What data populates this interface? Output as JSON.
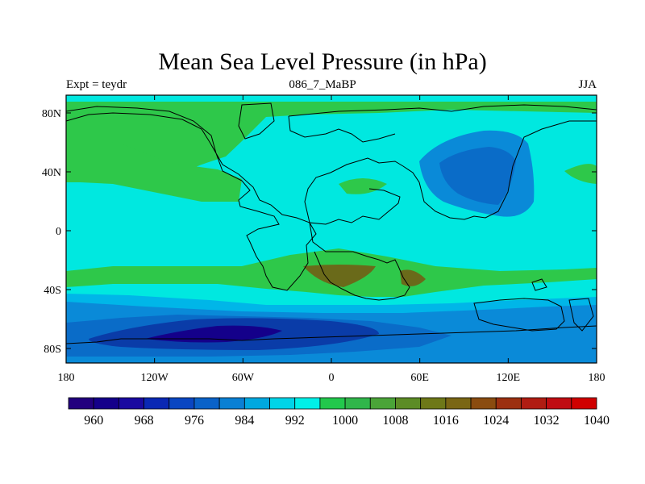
{
  "title": "Mean Sea Level Pressure (in hPa)",
  "subtitle_left": "Expt = teydr",
  "subtitle_center": "086_7_MaBP",
  "subtitle_right": "JJA",
  "colors": {
    "band_996_1004": "#00e8e0",
    "band_1004_1012": "#2ec84a",
    "band_992_996": "#00b6e8",
    "band_984_992": "#0a8ad8",
    "band_976_984": "#0a6cc8",
    "band_968_976": "#0a3ca8",
    "band_1012_1020": "#6a6a1a"
  },
  "map": {
    "lat_ticks": [
      "80N",
      "40N",
      "0",
      "40S",
      "80S"
    ],
    "lon_ticks": [
      "180",
      "120W",
      "60W",
      "0",
      "60E",
      "120E",
      "180"
    ]
  },
  "colorbar": {
    "colors": [
      "#22007e",
      "#14008a",
      "#1a0aa0",
      "#0a28b4",
      "#0a46c2",
      "#0a62c8",
      "#0a80d4",
      "#00a8e0",
      "#00d4e8",
      "#00f0e8",
      "#22c84c",
      "#30b64a",
      "#4aa438",
      "#5c8c26",
      "#6e7818",
      "#7a6614",
      "#8a4c10",
      "#9c3010",
      "#b01c12",
      "#c00c12",
      "#d00000"
    ],
    "labels": [
      "960",
      "968",
      "976",
      "984",
      "992",
      "1000",
      "1008",
      "1016",
      "1024",
      "1032",
      "1040"
    ]
  }
}
